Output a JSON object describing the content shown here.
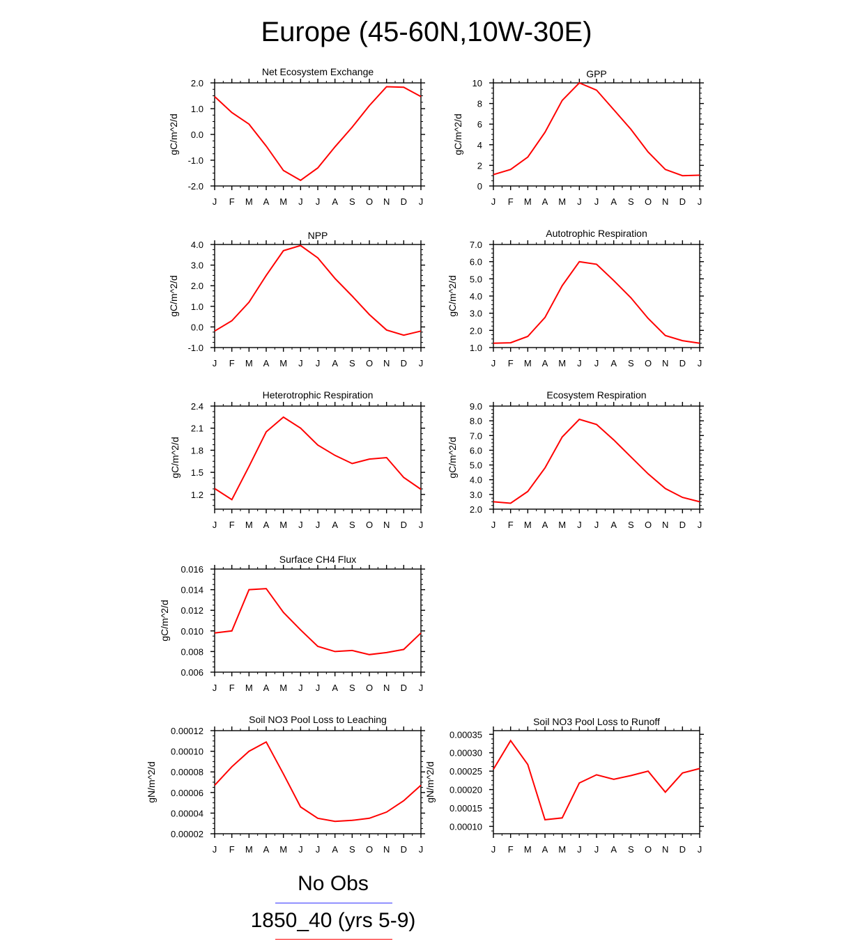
{
  "page": {
    "title": "Europe (45-60N,10W-30E)"
  },
  "legend": [
    {
      "label": "No Obs",
      "color": "#3333ff"
    },
    {
      "label": "1850_40 (yrs 5-9)",
      "color": "#ff0000"
    }
  ],
  "chart_data": [
    {
      "type": "line",
      "title": "Net Ecosystem Exchange",
      "ylabel": "gC/m^2/d",
      "xlabel": "",
      "categories": [
        "J",
        "F",
        "M",
        "A",
        "M",
        "J",
        "J",
        "A",
        "S",
        "O",
        "N",
        "D",
        "J"
      ],
      "ylim": [
        -2.0,
        2.0
      ],
      "yticks": [
        "-2.0",
        "-1.0",
        "0.0",
        "1.0",
        "2.0"
      ],
      "ytick_values": [
        -2.0,
        -1.0,
        0.0,
        1.0,
        2.0
      ],
      "series": [
        {
          "name": "1850_40 (yrs 5-9)",
          "color": "#ff0000",
          "values": [
            1.47,
            0.85,
            0.4,
            -0.45,
            -1.4,
            -1.78,
            -1.3,
            -0.48,
            0.28,
            1.12,
            1.85,
            1.83,
            1.47
          ]
        }
      ]
    },
    {
      "type": "line",
      "title": "GPP",
      "ylabel": "gC/m^2/d",
      "xlabel": "",
      "categories": [
        "J",
        "F",
        "M",
        "A",
        "M",
        "J",
        "J",
        "A",
        "S",
        "O",
        "N",
        "D",
        "J"
      ],
      "ylim": [
        0,
        10
      ],
      "yticks": [
        "0",
        "2",
        "4",
        "6",
        "8",
        "10"
      ],
      "ytick_values": [
        0,
        2,
        4,
        6,
        8,
        10
      ],
      "series": [
        {
          "name": "1850_40 (yrs 5-9)",
          "color": "#ff0000",
          "values": [
            1.1,
            1.6,
            2.8,
            5.2,
            8.3,
            10.0,
            9.3,
            7.4,
            5.5,
            3.3,
            1.6,
            1.0,
            1.05
          ]
        }
      ]
    },
    {
      "type": "line",
      "title": "NPP",
      "ylabel": "gC/m^2/d",
      "xlabel": "",
      "categories": [
        "J",
        "F",
        "M",
        "A",
        "M",
        "J",
        "J",
        "A",
        "S",
        "O",
        "N",
        "D",
        "J"
      ],
      "ylim": [
        -1.0,
        4.0
      ],
      "yticks": [
        "-1.0",
        "0.0",
        "1.0",
        "2.0",
        "3.0",
        "4.0"
      ],
      "ytick_values": [
        -1.0,
        0.0,
        1.0,
        2.0,
        3.0,
        4.0
      ],
      "series": [
        {
          "name": "1850_40 (yrs 5-9)",
          "color": "#ff0000",
          "values": [
            -0.2,
            0.3,
            1.2,
            2.5,
            3.7,
            3.95,
            3.35,
            2.35,
            1.5,
            0.6,
            -0.15,
            -0.4,
            -0.2
          ]
        }
      ]
    },
    {
      "type": "line",
      "title": "Autotrophic Respiration",
      "ylabel": "gC/m^2/d",
      "xlabel": "",
      "categories": [
        "J",
        "F",
        "M",
        "A",
        "M",
        "J",
        "J",
        "A",
        "S",
        "O",
        "N",
        "D",
        "J"
      ],
      "ylim": [
        1.0,
        7.0
      ],
      "yticks": [
        "1.0",
        "2.0",
        "3.0",
        "4.0",
        "5.0",
        "6.0",
        "7.0"
      ],
      "ytick_values": [
        1.0,
        2.0,
        3.0,
        4.0,
        5.0,
        6.0,
        7.0
      ],
      "series": [
        {
          "name": "1850_40 (yrs 5-9)",
          "color": "#ff0000",
          "values": [
            1.25,
            1.28,
            1.65,
            2.75,
            4.6,
            6.0,
            5.85,
            4.9,
            3.9,
            2.7,
            1.7,
            1.4,
            1.25
          ]
        }
      ]
    },
    {
      "type": "line",
      "title": "Heterotrophic Respiration",
      "ylabel": "gC/m^2/d",
      "xlabel": "",
      "categories": [
        "J",
        "F",
        "M",
        "A",
        "M",
        "J",
        "J",
        "A",
        "S",
        "O",
        "N",
        "D",
        "J"
      ],
      "ylim": [
        1.0,
        2.4
      ],
      "yticks": [
        "1.2",
        "1.5",
        "1.8",
        "2.1",
        "2.4"
      ],
      "ytick_values": [
        1.2,
        1.5,
        1.8,
        2.1,
        2.4
      ],
      "series": [
        {
          "name": "1850_40 (yrs 5-9)",
          "color": "#ff0000",
          "values": [
            1.28,
            1.13,
            1.58,
            2.05,
            2.25,
            2.1,
            1.87,
            1.73,
            1.62,
            1.68,
            1.7,
            1.43,
            1.27
          ]
        }
      ]
    },
    {
      "type": "line",
      "title": "Ecosystem Respiration",
      "ylabel": "gC/m^2/d",
      "xlabel": "",
      "categories": [
        "J",
        "F",
        "M",
        "A",
        "M",
        "J",
        "J",
        "A",
        "S",
        "O",
        "N",
        "D",
        "J"
      ],
      "ylim": [
        2.0,
        9.0
      ],
      "yticks": [
        "2.0",
        "3.0",
        "4.0",
        "5.0",
        "6.0",
        "7.0",
        "8.0",
        "9.0"
      ],
      "ytick_values": [
        2.0,
        3.0,
        4.0,
        5.0,
        6.0,
        7.0,
        8.0,
        9.0
      ],
      "series": [
        {
          "name": "1850_40 (yrs 5-9)",
          "color": "#ff0000",
          "values": [
            2.5,
            2.4,
            3.2,
            4.8,
            6.9,
            8.1,
            7.75,
            6.7,
            5.55,
            4.4,
            3.4,
            2.8,
            2.5
          ]
        }
      ]
    },
    {
      "type": "line",
      "title": "Surface CH4 Flux",
      "ylabel": "gC/m^2/d",
      "xlabel": "",
      "categories": [
        "J",
        "F",
        "M",
        "A",
        "M",
        "J",
        "J",
        "A",
        "S",
        "O",
        "N",
        "D",
        "J"
      ],
      "ylim": [
        0.006,
        0.016
      ],
      "yticks": [
        "0.006",
        "0.008",
        "0.010",
        "0.012",
        "0.014",
        "0.016"
      ],
      "ytick_values": [
        0.006,
        0.008,
        0.01,
        0.012,
        0.014,
        0.016
      ],
      "series": [
        {
          "name": "1850_40 (yrs 5-9)",
          "color": "#ff0000",
          "values": [
            0.0098,
            0.01,
            0.014,
            0.0141,
            0.0118,
            0.0101,
            0.0085,
            0.008,
            0.0081,
            0.0077,
            0.0079,
            0.0082,
            0.0098
          ]
        }
      ]
    },
    {
      "type": "line",
      "title": "Soil NO3 Pool Loss to Leaching",
      "ylabel": "gN/m^2/d",
      "xlabel": "",
      "categories": [
        "J",
        "F",
        "M",
        "A",
        "M",
        "J",
        "J",
        "A",
        "S",
        "O",
        "N",
        "D",
        "J"
      ],
      "ylim": [
        2e-05,
        0.00012
      ],
      "yticks": [
        "0.00002",
        "0.00004",
        "0.00006",
        "0.00008",
        "0.00010",
        "0.00012"
      ],
      "ytick_values": [
        2e-05,
        4e-05,
        6e-05,
        8e-05,
        0.0001,
        0.00012
      ],
      "series": [
        {
          "name": "1850_40 (yrs 5-9)",
          "color": "#ff0000",
          "values": [
            6.7e-05,
            8.5e-05,
            0.0001,
            0.000109,
            7.8e-05,
            4.6e-05,
            3.5e-05,
            3.2e-05,
            3.3e-05,
            3.5e-05,
            4.1e-05,
            5.2e-05,
            6.7e-05
          ]
        }
      ]
    },
    {
      "type": "line",
      "title": "Soil NO3 Pool Loss to Runoff",
      "ylabel": "gN/m^2/d",
      "xlabel": "",
      "categories": [
        "J",
        "F",
        "M",
        "A",
        "M",
        "J",
        "J",
        "A",
        "S",
        "O",
        "N",
        "D",
        "J"
      ],
      "ylim": [
        8e-05,
        0.00036
      ],
      "yticks": [
        "0.00010",
        "0.00015",
        "0.00020",
        "0.00025",
        "0.00030",
        "0.00035"
      ],
      "ytick_values": [
        0.0001,
        0.00015,
        0.0002,
        0.00025,
        0.0003,
        0.00035
      ],
      "series": [
        {
          "name": "1850_40 (yrs 5-9)",
          "color": "#ff0000",
          "values": [
            0.000255,
            0.000333,
            0.000268,
            0.000118,
            0.000123,
            0.000218,
            0.00024,
            0.000228,
            0.000238,
            0.00025,
            0.000193,
            0.000245,
            0.000257
          ]
        }
      ]
    }
  ]
}
